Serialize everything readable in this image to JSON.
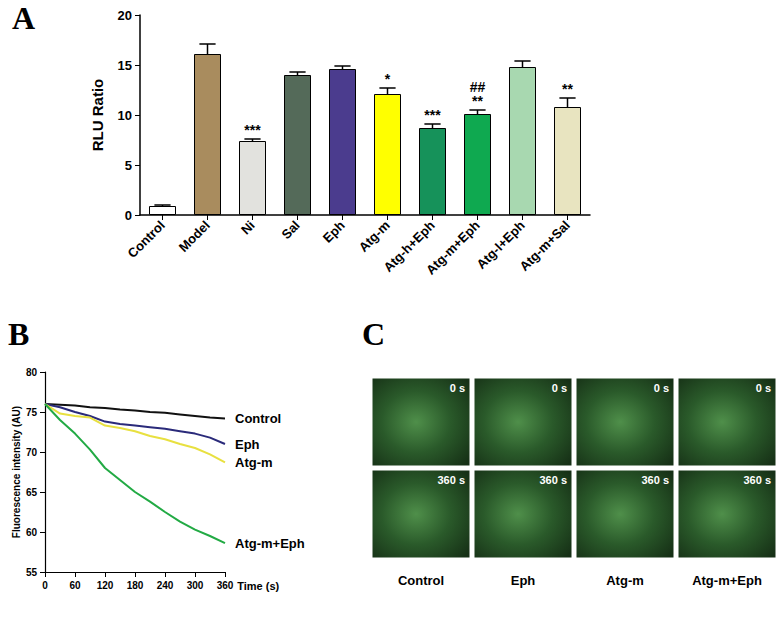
{
  "panel_labels": [
    "A",
    "B",
    "C"
  ],
  "chart_data": [
    {
      "type": "bar",
      "categories": [
        "Control",
        "Model",
        "Ni",
        "Sal",
        "Eph",
        "Atg-m",
        "Atg-h+Eph",
        "Atg-m+Eph",
        "Atg-l+Eph",
        "Atg-m+Sal"
      ],
      "values": [
        0.9,
        16.1,
        7.4,
        14.0,
        14.6,
        12.1,
        8.7,
        10.1,
        14.8,
        10.8
      ],
      "errors": [
        0.1,
        1.0,
        0.2,
        0.3,
        0.3,
        0.6,
        0.4,
        0.4,
        0.6,
        0.9
      ],
      "colors": [
        "#ffffff",
        "#a98c5e",
        "#e2e2de",
        "#546a59",
        "#4b3c8e",
        "#ffff00",
        "#16925a",
        "#0fa950",
        "#a8d8b0",
        "#e8e4c0"
      ],
      "annotations": [
        [],
        [],
        [
          "***"
        ],
        [],
        [],
        [
          "*"
        ],
        [
          "***"
        ],
        [
          "**",
          "##"
        ],
        [],
        [
          "**"
        ]
      ],
      "y_label": "RLU Ratio",
      "ylim": [
        0,
        20
      ],
      "yticks": [
        0,
        5,
        10,
        15,
        20
      ]
    },
    {
      "type": "line",
      "x": [
        0,
        30,
        60,
        90,
        120,
        150,
        180,
        210,
        240,
        270,
        300,
        330,
        360
      ],
      "series": [
        {
          "name": "Control",
          "color": "#111111",
          "values": [
            76,
            75.9,
            75.8,
            75.6,
            75.5,
            75.3,
            75.2,
            75.0,
            74.9,
            74.7,
            74.5,
            74.3,
            74.2
          ]
        },
        {
          "name": "Eph",
          "color": "#2a2a7a",
          "values": [
            76,
            75.6,
            75.0,
            74.5,
            73.8,
            73.5,
            73.3,
            73.1,
            72.9,
            72.6,
            72.3,
            71.8,
            71.0
          ]
        },
        {
          "name": "Atg-m",
          "color": "#e8e040",
          "values": [
            76,
            74.8,
            74.5,
            74.3,
            73.3,
            73.0,
            72.6,
            72.0,
            71.6,
            71.0,
            70.5,
            69.7,
            68.7
          ]
        },
        {
          "name": "Atg-m+Eph",
          "color": "#22aa44",
          "values": [
            76,
            74.0,
            72.3,
            70.3,
            68.0,
            66.5,
            65.0,
            63.8,
            62.5,
            61.3,
            60.3,
            59.5,
            58.6
          ]
        }
      ],
      "x_label": "Time (s)",
      "y_label": "Fluorescence intensity (AU)",
      "xlim": [
        0,
        360
      ],
      "xticks": [
        0,
        60,
        120,
        180,
        240,
        300,
        360
      ],
      "ylim": [
        55,
        80
      ],
      "yticks": [
        55,
        60,
        65,
        70,
        75,
        80
      ]
    }
  ],
  "image_panel": {
    "columns": [
      "Control",
      "Eph",
      "Atg-m",
      "Atg-m+Eph"
    ],
    "rows": [
      "0 s",
      "360 s"
    ]
  }
}
